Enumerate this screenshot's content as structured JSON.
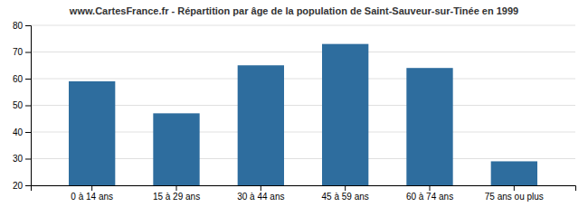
{
  "chart_data": {
    "type": "bar",
    "title": "www.CartesFrance.fr - Répartition par âge de la population de Saint-Sauveur-sur-Tinée en 1999",
    "categories": [
      "0 à 14 ans",
      "15 à 29 ans",
      "30 à 44 ans",
      "45 à 59 ans",
      "60 à 74 ans",
      "75 ans ou plus"
    ],
    "values": [
      59,
      47,
      65,
      73,
      64,
      29
    ],
    "color": "#2e6d9e",
    "ylim": [
      20,
      80
    ],
    "yticks": [
      20,
      30,
      40,
      50,
      60,
      70,
      80
    ],
    "grid": true
  }
}
